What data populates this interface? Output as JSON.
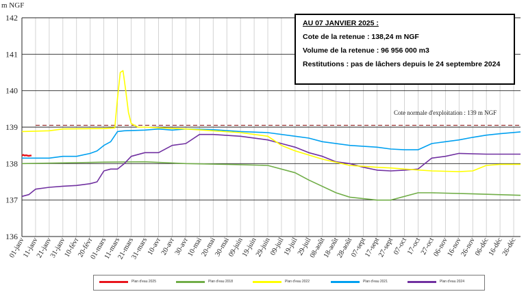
{
  "chart_data": {
    "type": "line",
    "ylabel": "m NGF",
    "ylim": [
      136,
      142
    ],
    "yticks": [
      "136",
      "137",
      "138",
      "139",
      "140",
      "141",
      "142"
    ],
    "xcategories": [
      "01-janv",
      "11-janv",
      "21-janv",
      "31-janv",
      "10-févr",
      "20-févr",
      "01-mars",
      "11-mars",
      "21-mars",
      "31-mars",
      "10-avr",
      "20-avr",
      "30-avr",
      "10-mai",
      "20-mai",
      "30-mai",
      "09-juin",
      "19-juin",
      "29-juin",
      "09-juil",
      "19-juil",
      "29-juil",
      "08-août",
      "18-août",
      "28-août",
      "07-sept",
      "17-sept",
      "27-sept",
      "07-oct",
      "17-oct",
      "27-oct",
      "06-nov",
      "16-nov",
      "26-nov",
      "06-déc",
      "16-déc",
      "26-déc"
    ],
    "grid": true,
    "reference_line": {
      "value": 139.05,
      "label": "Cote normale d'exploitation : 139 m NGF",
      "color": "#8b1a1a"
    },
    "series": [
      {
        "name": "Plan d'eau 2025",
        "color": "#e8141c",
        "x": [
          0,
          1,
          2,
          3,
          4,
          5,
          6,
          7
        ],
        "y": [
          138.22,
          138.24,
          138.22,
          138.23,
          138.22,
          138.21,
          138.22,
          138.22
        ]
      },
      {
        "name": "Plan d'eau 2018",
        "color": "#70ad47",
        "x": [
          0,
          30,
          60,
          90,
          120,
          150,
          180,
          200,
          210,
          230,
          240,
          260,
          270,
          290,
          300,
          330,
          365
        ],
        "y": [
          138.0,
          138.02,
          138.04,
          138.05,
          138.0,
          137.98,
          137.95,
          137.75,
          137.55,
          137.2,
          137.08,
          137.0,
          137.0,
          137.2,
          137.2,
          137.17,
          137.13
        ]
      },
      {
        "name": "Plan d'eau 2022",
        "color": "#ffff00",
        "x": [
          0,
          20,
          30,
          60,
          68,
          70,
          72,
          74,
          76,
          78,
          80,
          85,
          90,
          120,
          140,
          160,
          180,
          190,
          200,
          220,
          240,
          260,
          270,
          280,
          300,
          320,
          330,
          340,
          350,
          365
        ],
        "y": [
          138.88,
          138.9,
          138.95,
          138.96,
          138.98,
          139.8,
          140.5,
          140.55,
          140.0,
          139.4,
          139.1,
          139.0,
          139.0,
          138.95,
          138.9,
          138.85,
          138.75,
          138.5,
          138.35,
          138.12,
          137.95,
          137.9,
          137.88,
          137.85,
          137.8,
          137.78,
          137.8,
          137.95,
          137.98,
          137.98
        ]
      },
      {
        "name": "Plan d'eau 2021",
        "color": "#00a0f0",
        "x": [
          0,
          20,
          30,
          40,
          50,
          55,
          60,
          65,
          70,
          75,
          90,
          100,
          110,
          120,
          140,
          160,
          180,
          200,
          210,
          220,
          240,
          260,
          270,
          280,
          290,
          300,
          310,
          320,
          330,
          340,
          350,
          365
        ],
        "y": [
          138.15,
          138.15,
          138.2,
          138.2,
          138.28,
          138.35,
          138.5,
          138.6,
          138.88,
          138.9,
          138.92,
          138.95,
          138.92,
          138.95,
          138.93,
          138.88,
          138.85,
          138.75,
          138.7,
          138.6,
          138.5,
          138.45,
          138.4,
          138.38,
          138.38,
          138.55,
          138.6,
          138.65,
          138.72,
          138.78,
          138.82,
          138.87
        ]
      },
      {
        "name": "Plan d'eau 2024",
        "color": "#7030a0",
        "x": [
          0,
          5,
          10,
          20,
          30,
          40,
          50,
          55,
          60,
          65,
          70,
          75,
          80,
          90,
          100,
          110,
          120,
          130,
          140,
          160,
          180,
          190,
          200,
          210,
          220,
          230,
          240,
          250,
          260,
          270,
          280,
          290,
          295,
          300,
          310,
          320,
          340,
          365
        ],
        "y": [
          137.1,
          137.15,
          137.3,
          137.35,
          137.38,
          137.4,
          137.45,
          137.5,
          137.8,
          137.85,
          137.85,
          138.0,
          138.2,
          138.3,
          138.3,
          138.5,
          138.55,
          138.8,
          138.8,
          138.75,
          138.65,
          138.55,
          138.45,
          138.3,
          138.2,
          138.05,
          138.0,
          137.9,
          137.82,
          137.8,
          137.82,
          137.85,
          138.0,
          138.15,
          138.2,
          138.28,
          138.26,
          138.26
        ]
      }
    ]
  },
  "unit_label": "m NGF",
  "infobox": {
    "title": "AU 07 JANVIER 2025 :",
    "line1": "Cote de la retenue : 138,24 m NGF",
    "line2": "Volume de la retenue : 96 956 000 m3",
    "line3": "Restitutions : pas de lâchers depuis le 24 septembre 2024"
  },
  "legend": [
    {
      "label": "Plan d'eau 2025",
      "color": "#e8141c"
    },
    {
      "label": "Plan d'eau 2018",
      "color": "#70ad47"
    },
    {
      "label": "Plan d'eau 2022",
      "color": "#ffff00"
    },
    {
      "label": "Plan d'eau 2021",
      "color": "#00a0f0"
    },
    {
      "label": "Plan d'eau 2024",
      "color": "#7030a0"
    }
  ]
}
